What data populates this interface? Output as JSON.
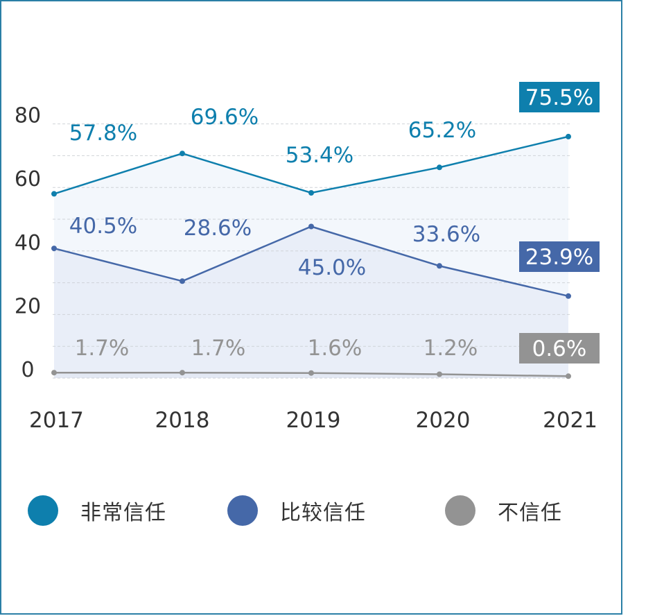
{
  "chart_data": {
    "type": "line",
    "categories": [
      "2017",
      "2018",
      "2019",
      "2020",
      "2021"
    ],
    "y_ticks": [
      "0",
      "20",
      "40",
      "60",
      "80"
    ],
    "ylim": [
      0,
      90
    ],
    "grid": true,
    "legend_position": "bottom",
    "series": [
      {
        "name": "非常信任",
        "color": "#0e7fad",
        "values": [
          57.8,
          69.6,
          53.4,
          65.2,
          75.5
        ],
        "labels": [
          "57.8%",
          "69.6%",
          "53.4%",
          "65.2%",
          "75.5%"
        ],
        "y": [
          58.0,
          70.7,
          58.3,
          66.3,
          76.0
        ]
      },
      {
        "name": "比较信任",
        "color": "#4568a8",
        "values": [
          40.5,
          28.6,
          45.0,
          33.6,
          23.9
        ],
        "labels": [
          "40.5%",
          "28.6%",
          "45.0%",
          "33.6%",
          "23.9%"
        ],
        "y": [
          40.8,
          30.5,
          47.7,
          35.3,
          25.8
        ]
      },
      {
        "name": "不信任",
        "color": "#939393",
        "values": [
          1.7,
          1.7,
          1.6,
          1.2,
          0.6
        ],
        "labels": [
          "1.7%",
          "1.7%",
          "1.6%",
          "1.2%",
          "0.6%"
        ],
        "y": [
          1.7,
          1.7,
          1.6,
          1.2,
          0.6
        ]
      }
    ]
  }
}
